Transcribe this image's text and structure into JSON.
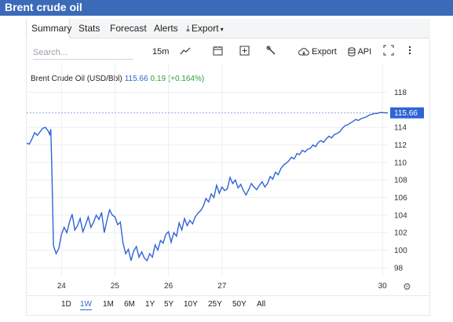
{
  "window": {
    "title": "Brent crude oil"
  },
  "tabs": [
    {
      "label": "Summary",
      "active": true
    },
    {
      "label": "Stats"
    },
    {
      "label": "Forecast"
    },
    {
      "label": "Alerts"
    },
    {
      "label": "Export",
      "icon": "download-icon",
      "caret": "▾"
    }
  ],
  "toolbar": {
    "search_placeholder": "Search...",
    "interval": "15m",
    "export_label": "Export",
    "api_label": "API",
    "icons": [
      "line-chart-icon",
      "calendar-icon",
      "add-indicator-icon",
      "wrench-icon",
      "cloud-download-icon",
      "database-icon",
      "fullscreen-icon",
      "more-icon"
    ]
  },
  "legend": {
    "name": "Brent Crude Oil (USD/Bbl)",
    "price": "115.66",
    "change": "0.19 (+0.164%)"
  },
  "colors": {
    "line": "#2f64d6",
    "accent": "#3b6ab8",
    "change_positive": "#2ea043"
  },
  "range_buttons": [
    {
      "label": "1D"
    },
    {
      "label": "1W",
      "active": true
    },
    {
      "label": "1M"
    },
    {
      "label": "6M"
    },
    {
      "label": "1Y"
    },
    {
      "label": "5Y"
    },
    {
      "label": "10Y"
    },
    {
      "label": "25Y"
    },
    {
      "label": "50Y"
    },
    {
      "label": "All"
    }
  ],
  "chart_data": {
    "type": "line",
    "title": "",
    "xlabel": "",
    "ylabel": "",
    "ylim": [
      97,
      118.5
    ],
    "xlim": [
      23.35,
      30.1
    ],
    "yticks": [
      98,
      100,
      102,
      104,
      106,
      108,
      110,
      112,
      114,
      118
    ],
    "xticks": [
      {
        "value": 24,
        "label": "24"
      },
      {
        "value": 25,
        "label": "25"
      },
      {
        "value": 26,
        "label": "26"
      },
      {
        "value": 27,
        "label": "27"
      },
      {
        "value": 30,
        "label": "30"
      }
    ],
    "last_price_tag": "115.66",
    "grid": true,
    "series": [
      {
        "x": [
          23.35,
          23.4,
          23.45,
          23.5,
          23.55,
          23.6,
          23.65,
          23.7,
          23.75,
          23.78,
          23.8,
          23.82,
          23.85,
          23.9,
          23.95,
          24.0,
          24.05,
          24.1,
          24.15,
          24.2,
          24.25,
          24.3,
          24.35,
          24.4,
          24.45,
          24.5,
          24.55,
          24.6,
          24.65,
          24.7,
          24.75,
          24.8,
          24.85,
          24.9,
          24.95,
          25.0,
          25.05,
          25.1,
          25.15,
          25.2,
          25.25,
          25.3,
          25.35,
          25.4,
          25.45,
          25.5,
          25.55,
          25.6,
          25.65,
          25.7,
          25.75,
          25.8,
          25.85,
          25.9,
          25.95,
          26.0,
          26.05,
          26.1,
          26.15,
          26.2,
          26.25,
          26.3,
          26.35,
          26.4,
          26.45,
          26.5,
          26.55,
          26.6,
          26.65,
          26.7,
          26.75,
          26.8,
          26.85,
          26.9,
          26.95,
          27.0,
          27.05,
          27.1,
          27.15,
          27.2,
          27.25,
          27.3,
          27.35,
          27.4,
          27.45,
          27.5,
          27.55,
          27.6,
          27.65,
          27.7,
          27.75,
          27.8,
          27.85,
          27.9,
          27.95,
          28.0,
          28.05,
          28.1,
          28.15,
          28.2,
          28.25,
          28.3,
          28.35,
          28.4,
          28.45,
          28.5,
          28.55,
          28.6,
          28.65,
          28.7,
          28.75,
          28.8,
          28.85,
          28.9,
          28.95,
          29.0,
          29.05,
          29.1,
          29.15,
          29.2,
          29.25,
          29.3,
          29.35,
          29.4,
          29.45,
          29.5,
          29.55,
          29.6,
          29.65,
          29.7,
          29.75,
          29.8,
          29.85,
          29.9,
          29.95,
          30.0,
          30.05,
          30.1
        ],
        "values": [
          112.2,
          112.1,
          112.7,
          113.4,
          113.1,
          113.5,
          113.9,
          114.0,
          113.6,
          113.2,
          113.8,
          109.5,
          100.5,
          99.6,
          100.2,
          101.8,
          102.6,
          102.0,
          103.2,
          104.1,
          102.3,
          102.8,
          103.6,
          102.1,
          102.9,
          103.8,
          102.6,
          103.2,
          104.0,
          103.5,
          104.3,
          102.0,
          103.4,
          104.6,
          104.0,
          103.8,
          102.9,
          103.2,
          100.8,
          99.6,
          100.1,
          98.8,
          99.9,
          100.4,
          99.2,
          99.8,
          99.1,
          98.8,
          99.6,
          99.2,
          100.6,
          100.0,
          101.1,
          100.8,
          101.8,
          102.1,
          100.9,
          102.0,
          101.6,
          103.1,
          102.3,
          103.6,
          102.8,
          103.4,
          103.0,
          103.8,
          104.2,
          104.5,
          105.0,
          105.9,
          105.5,
          106.4,
          106.0,
          107.4,
          106.5,
          107.2,
          106.8,
          107.0,
          108.3,
          107.6,
          108.0,
          107.1,
          107.5,
          106.8,
          106.3,
          106.9,
          107.6,
          107.2,
          106.9,
          107.4,
          107.8,
          107.2,
          107.6,
          108.4,
          108.1,
          108.9,
          108.6,
          109.3,
          109.7,
          109.9,
          110.2,
          110.6,
          110.4,
          111.0,
          110.9,
          111.4,
          111.2,
          111.5,
          111.6,
          112.0,
          111.8,
          112.3,
          112.5,
          112.3,
          112.7,
          113.0,
          112.8,
          113.2,
          113.3,
          113.5,
          113.9,
          114.2,
          114.3,
          114.5,
          114.7,
          114.9,
          114.8,
          115.0,
          115.1,
          115.2,
          115.4,
          115.5,
          115.6,
          115.6,
          115.7,
          115.7,
          115.66,
          115.66
        ]
      }
    ]
  }
}
